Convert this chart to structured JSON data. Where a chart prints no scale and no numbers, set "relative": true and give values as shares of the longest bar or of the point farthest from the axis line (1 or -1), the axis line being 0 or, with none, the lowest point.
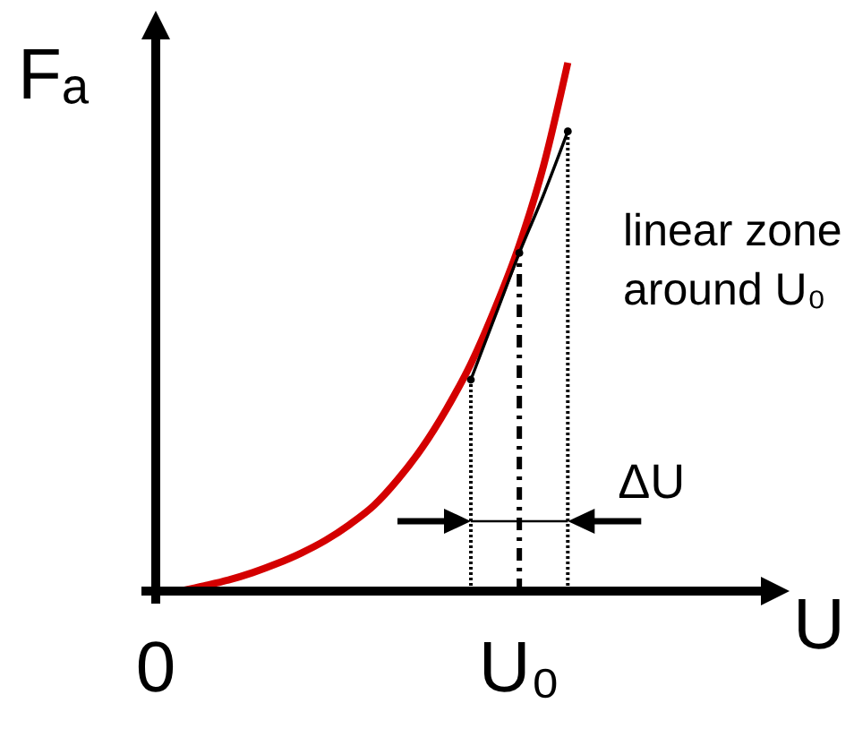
{
  "chart_data": {
    "type": "line",
    "relative": true,
    "xlabel": "U",
    "ylabel": "Fₐ",
    "tick_labels": "x",
    "categories": [
      "0",
      null,
      null,
      null,
      null,
      null,
      null,
      null,
      null,
      null,
      null,
      null,
      null,
      null,
      null,
      "U₀",
      null,
      null,
      null,
      null,
      null,
      null,
      null,
      null,
      null,
      null,
      null
    ],
    "series": [
      {
        "color": "#d40000",
        "values": [
          null,
          0,
          0.01,
          0.021,
          0.035,
          0.052,
          0.072,
          0.096,
          0.126,
          0.162,
          0.212,
          0.272,
          0.345,
          0.43,
          0.535,
          0.655,
          0.805,
          1,
          null,
          null,
          null,
          null,
          null,
          null,
          null,
          null,
          null
        ]
      },
      {
        "color": "#000000",
        "values": [
          null,
          null,
          null,
          null,
          null,
          null,
          null,
          null,
          null,
          null,
          null,
          null,
          null,
          0.4,
          0.52,
          0.64,
          0.75,
          0.87,
          null,
          null,
          null,
          null,
          null,
          null,
          null,
          null,
          null
        ]
      },
      {
        "type": "lollipop",
        "color": "#000000",
        "line_style": "dotted",
        "marker": "circle",
        "values": [
          null,
          null,
          null,
          null,
          null,
          null,
          null,
          null,
          null,
          null,
          null,
          null,
          null,
          0.4,
          null,
          null,
          null,
          0.87,
          null,
          null,
          null,
          null,
          null,
          null,
          null,
          null,
          null
        ]
      },
      {
        "type": "lollipop",
        "color": "#000000",
        "line_style": "dashdot",
        "marker": "circle",
        "values": [
          null,
          null,
          null,
          null,
          null,
          null,
          null,
          null,
          null,
          null,
          null,
          null,
          null,
          null,
          null,
          0.64,
          null,
          null,
          null,
          null,
          null,
          null,
          null,
          null,
          null,
          null,
          null
        ]
      }
    ],
    "annotations": [
      "linear zone around U₀",
      "ΔU"
    ]
  }
}
